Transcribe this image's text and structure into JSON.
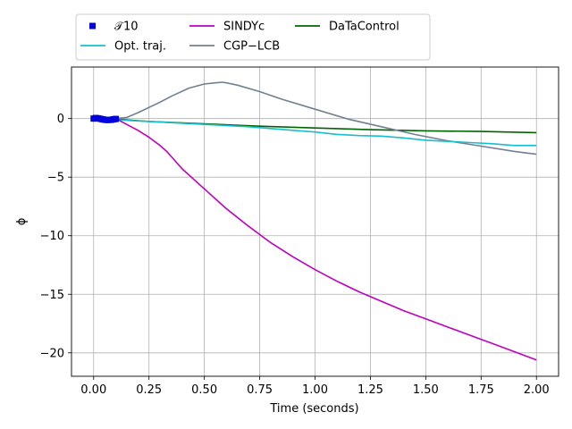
{
  "chart_data": {
    "type": "line",
    "title": "",
    "xlabel": "Time (seconds)",
    "ylabel": "ϕ",
    "xlim": [
      -0.1,
      2.1
    ],
    "ylim": [
      -22,
      4.4
    ],
    "grid": true,
    "legend_placement": "top, above plot",
    "x_ticks": [
      0.0,
      0.25,
      0.5,
      0.75,
      1.0,
      1.25,
      1.5,
      1.75,
      2.0
    ],
    "x_tick_labels": [
      "0.00",
      "0.25",
      "0.50",
      "0.75",
      "1.00",
      "1.25",
      "1.50",
      "1.75",
      "2.00"
    ],
    "y_ticks": [
      0,
      -5,
      -10,
      -15,
      -20
    ],
    "y_tick_labels": [
      "0",
      "−5",
      "−10",
      "−15",
      "−20"
    ],
    "series": [
      {
        "name": "𝒯10",
        "kind": "markers",
        "color": "#0000dd",
        "x": [
          0.0,
          0.01,
          0.02,
          0.03,
          0.04,
          0.05,
          0.06,
          0.07,
          0.08,
          0.09,
          0.1
        ],
        "y": [
          0.0,
          0.05,
          0.02,
          -0.02,
          -0.06,
          -0.1,
          -0.12,
          -0.12,
          -0.1,
          -0.06,
          -0.03
        ]
      },
      {
        "name": "Opt. traj.",
        "kind": "line",
        "color": "#17becf",
        "x": [
          0.0,
          0.1,
          0.2,
          0.3,
          0.4,
          0.5,
          0.6,
          0.7,
          0.8,
          0.9,
          1.0,
          1.1,
          1.2,
          1.3,
          1.4,
          1.5,
          1.6,
          1.7,
          1.8,
          1.9,
          2.0
        ],
        "y": [
          0.0,
          -0.1,
          -0.2,
          -0.3,
          -0.4,
          -0.5,
          -0.6,
          -0.7,
          -0.85,
          -1.0,
          -1.15,
          -1.35,
          -1.45,
          -1.5,
          -1.65,
          -1.85,
          -1.95,
          -2.05,
          -2.15,
          -2.3,
          -2.3
        ]
      },
      {
        "name": "SINDYc",
        "kind": "line",
        "color": "#bf00bf",
        "x": [
          0.0,
          0.1,
          0.2,
          0.25,
          0.3,
          0.33,
          0.4,
          0.5,
          0.6,
          0.7,
          0.8,
          0.9,
          1.0,
          1.1,
          1.2,
          1.3,
          1.4,
          1.5,
          1.6,
          1.7,
          1.8,
          1.9,
          2.0
        ],
        "y": [
          0.0,
          0.0,
          -1.0,
          -1.6,
          -2.3,
          -2.8,
          -4.3,
          -6.0,
          -7.7,
          -9.2,
          -10.6,
          -11.8,
          -12.9,
          -13.9,
          -14.8,
          -15.6,
          -16.4,
          -17.1,
          -17.8,
          -18.5,
          -19.2,
          -19.9,
          -20.6
        ]
      },
      {
        "name": "CGP−LCB",
        "kind": "line",
        "color": "#708090",
        "x": [
          0.0,
          0.1,
          0.15,
          0.2,
          0.3,
          0.35,
          0.43,
          0.5,
          0.55,
          0.58,
          0.6,
          0.65,
          0.75,
          0.85,
          1.0,
          1.15,
          1.3,
          1.45,
          1.6,
          1.75,
          1.9,
          2.0
        ],
        "y": [
          0.0,
          0.0,
          0.1,
          0.5,
          1.4,
          1.9,
          2.6,
          2.95,
          3.05,
          3.1,
          3.05,
          2.85,
          2.3,
          1.65,
          0.8,
          -0.05,
          -0.7,
          -1.35,
          -1.9,
          -2.35,
          -2.8,
          -3.05
        ]
      },
      {
        "name": "DaTaControl",
        "kind": "line",
        "color": "#006400",
        "x": [
          0.0,
          0.1,
          0.25,
          0.5,
          0.75,
          1.0,
          1.25,
          1.5,
          1.75,
          2.0
        ],
        "y": [
          0.0,
          -0.05,
          -0.25,
          -0.45,
          -0.65,
          -0.8,
          -0.95,
          -1.05,
          -1.1,
          -1.2
        ]
      }
    ]
  }
}
